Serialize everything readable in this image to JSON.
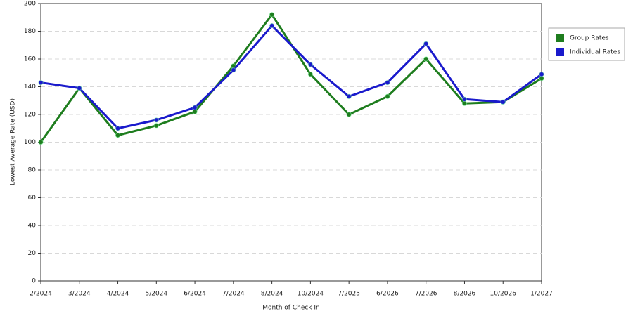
{
  "chart_data": {
    "type": "line",
    "x_label": "Month of Check In",
    "y_label": "Lowest Average Rate (USD)",
    "categories": [
      "2/2024",
      "3/2024",
      "4/2024",
      "5/2024",
      "6/2024",
      "7/2024",
      "8/2024",
      "10/2024",
      "7/2025",
      "6/2026",
      "7/2026",
      "8/2026",
      "10/2026",
      "1/2027"
    ],
    "series": [
      {
        "name": "Group Rates",
        "color": "#1e7d1e",
        "values": [
          100,
          139,
          105,
          112,
          122,
          155,
          192,
          149,
          120,
          133,
          160,
          128,
          129,
          146
        ]
      },
      {
        "name": "Individual Rates",
        "color": "#1a1acc",
        "values": [
          143,
          139,
          110,
          116,
          125,
          152,
          184,
          156,
          133,
          143,
          171,
          131,
          129,
          149
        ]
      }
    ],
    "ylim": [
      0,
      200
    ],
    "yticks": [
      0,
      20,
      40,
      60,
      80,
      100,
      120,
      140,
      160,
      180,
      200
    ],
    "grid": true,
    "legend": "right"
  }
}
